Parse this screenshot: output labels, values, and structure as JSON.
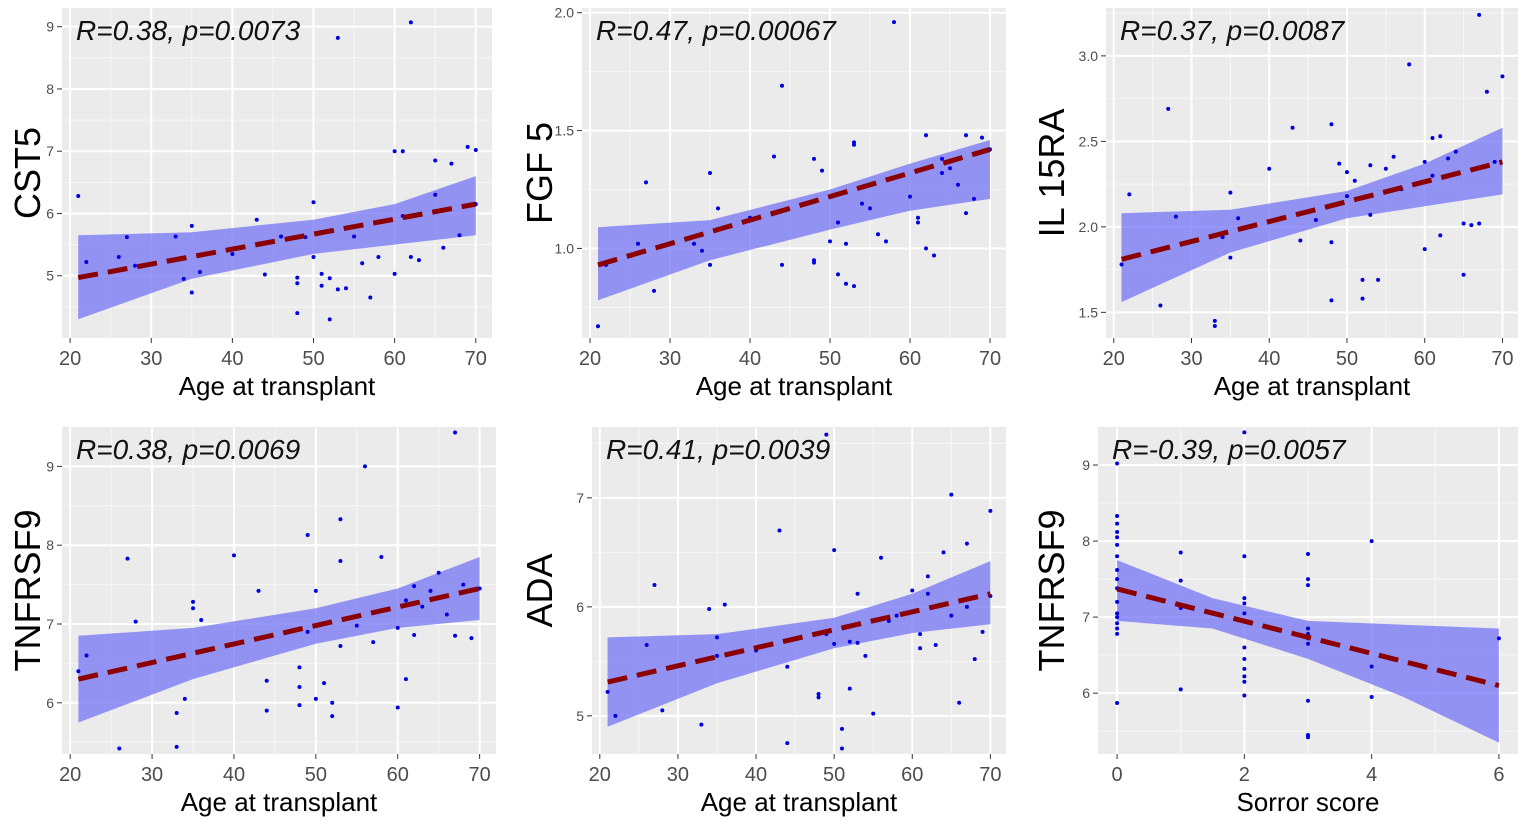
{
  "chart_data": [
    {
      "type": "scatter",
      "title": "",
      "annotation": "R=0.38, p=0.0073",
      "xlabel": "Age at transplant",
      "ylabel": "CST5",
      "xlim": [
        19,
        72
      ],
      "ylim": [
        4.0,
        9.3
      ],
      "x_ticks": [
        20,
        30,
        40,
        50,
        60,
        70
      ],
      "y_ticks": [
        5,
        6,
        7,
        8,
        9
      ],
      "fit": {
        "x": [
          21,
          70
        ],
        "y": [
          4.97,
          6.15
        ]
      },
      "band": {
        "x": [
          21,
          35,
          50,
          60,
          70
        ],
        "lower": [
          4.3,
          4.95,
          5.35,
          5.5,
          5.65
        ],
        "upper": [
          5.65,
          5.7,
          5.9,
          6.15,
          6.6
        ]
      },
      "points": [
        [
          21,
          6.28
        ],
        [
          22,
          5.22
        ],
        [
          26,
          5.3
        ],
        [
          27,
          5.62
        ],
        [
          28,
          5.16
        ],
        [
          33,
          5.63
        ],
        [
          34,
          4.95
        ],
        [
          35,
          5.8
        ],
        [
          35,
          4.73
        ],
        [
          36,
          5.06
        ],
        [
          40,
          5.35
        ],
        [
          43,
          5.9
        ],
        [
          44,
          5.02
        ],
        [
          46,
          5.63
        ],
        [
          48,
          4.97
        ],
        [
          48,
          4.4
        ],
        [
          48,
          4.88
        ],
        [
          49,
          5.62
        ],
        [
          50,
          6.18
        ],
        [
          50,
          5.3
        ],
        [
          51,
          4.84
        ],
        [
          51,
          5.03
        ],
        [
          52,
          4.3
        ],
        [
          52,
          4.96
        ],
        [
          53,
          8.82
        ],
        [
          53,
          4.78
        ],
        [
          54,
          4.8
        ],
        [
          55,
          5.63
        ],
        [
          56,
          5.2
        ],
        [
          57,
          4.65
        ],
        [
          58,
          5.3
        ],
        [
          60,
          5.03
        ],
        [
          60,
          7.0
        ],
        [
          61,
          7.0
        ],
        [
          61,
          5.96
        ],
        [
          62,
          9.07
        ],
        [
          62,
          5.3
        ],
        [
          63,
          5.25
        ],
        [
          65,
          6.85
        ],
        [
          65,
          6.3
        ],
        [
          66,
          5.45
        ],
        [
          67,
          6.8
        ],
        [
          68,
          5.65
        ],
        [
          69,
          7.07
        ],
        [
          70,
          7.02
        ],
        [
          70,
          6.15
        ]
      ]
    },
    {
      "type": "scatter",
      "title": "",
      "annotation": "R=0.47, p=0.00067",
      "xlabel": "Age at transplant",
      "ylabel": "FGF 5",
      "xlim": [
        19,
        72
      ],
      "ylim": [
        0.62,
        2.02
      ],
      "x_ticks": [
        20,
        30,
        40,
        50,
        60,
        70
      ],
      "y_ticks": [
        1.0,
        1.5,
        2.0
      ],
      "fit": {
        "x": [
          21,
          70
        ],
        "y": [
          0.93,
          1.42
        ]
      },
      "band": {
        "x": [
          21,
          35,
          50,
          60,
          70
        ],
        "lower": [
          0.78,
          0.95,
          1.08,
          1.16,
          1.21
        ],
        "upper": [
          1.09,
          1.12,
          1.25,
          1.36,
          1.46
        ]
      },
      "points": [
        [
          21,
          0.67
        ],
        [
          22,
          0.93
        ],
        [
          26,
          1.02
        ],
        [
          27,
          1.28
        ],
        [
          28,
          0.82
        ],
        [
          33,
          1.02
        ],
        [
          34,
          0.99
        ],
        [
          35,
          0.93
        ],
        [
          35,
          1.32
        ],
        [
          36,
          1.17
        ],
        [
          40,
          1.13
        ],
        [
          43,
          1.39
        ],
        [
          44,
          1.69
        ],
        [
          44,
          0.93
        ],
        [
          48,
          1.38
        ],
        [
          48,
          0.95
        ],
        [
          48,
          0.94
        ],
        [
          49,
          1.33
        ],
        [
          50,
          1.22
        ],
        [
          50,
          1.03
        ],
        [
          51,
          1.11
        ],
        [
          51,
          0.89
        ],
        [
          52,
          0.85
        ],
        [
          52,
          1.02
        ],
        [
          53,
          1.44
        ],
        [
          53,
          1.45
        ],
        [
          53,
          0.84
        ],
        [
          54,
          1.19
        ],
        [
          55,
          1.17
        ],
        [
          56,
          1.06
        ],
        [
          57,
          1.03
        ],
        [
          58,
          1.96
        ],
        [
          60,
          1.22
        ],
        [
          61,
          1.13
        ],
        [
          61,
          1.11
        ],
        [
          62,
          1.48
        ],
        [
          62,
          1.0
        ],
        [
          63,
          0.97
        ],
        [
          64,
          1.32
        ],
        [
          64,
          1.38
        ],
        [
          65,
          1.34
        ],
        [
          66,
          1.27
        ],
        [
          67,
          1.15
        ],
        [
          67,
          1.48
        ],
        [
          68,
          1.21
        ],
        [
          69,
          1.47
        ],
        [
          70,
          1.42
        ]
      ]
    },
    {
      "type": "scatter",
      "title": "",
      "annotation": "R=0.37, p=0.0087",
      "xlabel": "Age at transplant",
      "ylabel": "IL 15RA",
      "xlim": [
        19,
        72
      ],
      "ylim": [
        1.35,
        3.28
      ],
      "x_ticks": [
        20,
        30,
        40,
        50,
        60,
        70
      ],
      "y_ticks": [
        1.5,
        2.0,
        2.5,
        3.0
      ],
      "fit": {
        "x": [
          21,
          70
        ],
        "y": [
          1.81,
          2.38
        ]
      },
      "band": {
        "x": [
          21,
          35,
          50,
          60,
          70
        ],
        "lower": [
          1.56,
          1.85,
          2.05,
          2.12,
          2.19
        ],
        "upper": [
          2.08,
          2.1,
          2.21,
          2.37,
          2.58
        ]
      },
      "points": [
        [
          21,
          1.78
        ],
        [
          22,
          2.19
        ],
        [
          26,
          1.54
        ],
        [
          27,
          2.69
        ],
        [
          28,
          2.06
        ],
        [
          33,
          1.45
        ],
        [
          33,
          1.42
        ],
        [
          34,
          1.94
        ],
        [
          35,
          2.2
        ],
        [
          35,
          1.82
        ],
        [
          36,
          2.05
        ],
        [
          40,
          2.34
        ],
        [
          43,
          2.58
        ],
        [
          44,
          1.92
        ],
        [
          46,
          2.04
        ],
        [
          48,
          2.6
        ],
        [
          48,
          1.57
        ],
        [
          48,
          1.91
        ],
        [
          49,
          2.37
        ],
        [
          50,
          2.32
        ],
        [
          50,
          2.18
        ],
        [
          51,
          2.27
        ],
        [
          52,
          1.69
        ],
        [
          52,
          1.58
        ],
        [
          53,
          2.36
        ],
        [
          53,
          2.07
        ],
        [
          54,
          1.69
        ],
        [
          55,
          2.34
        ],
        [
          56,
          2.41
        ],
        [
          57,
          2.22
        ],
        [
          58,
          2.95
        ],
        [
          60,
          1.87
        ],
        [
          60,
          2.38
        ],
        [
          61,
          2.52
        ],
        [
          61,
          2.3
        ],
        [
          62,
          2.53
        ],
        [
          62,
          1.95
        ],
        [
          63,
          2.4
        ],
        [
          64,
          2.44
        ],
        [
          65,
          1.72
        ],
        [
          65,
          2.02
        ],
        [
          66,
          2.01
        ],
        [
          67,
          3.24
        ],
        [
          67,
          2.02
        ],
        [
          68,
          2.79
        ],
        [
          69,
          2.38
        ],
        [
          70,
          2.88
        ]
      ]
    },
    {
      "type": "scatter",
      "title": "",
      "annotation": "R=0.38, p=0.0069",
      "xlabel": "Age at transplant",
      "ylabel": "TNFRSF9",
      "xlim": [
        19,
        72
      ],
      "ylim": [
        5.35,
        9.5
      ],
      "x_ticks": [
        20,
        30,
        40,
        50,
        60,
        70
      ],
      "y_ticks": [
        6,
        7,
        8,
        9
      ],
      "fit": {
        "x": [
          21,
          70
        ],
        "y": [
          6.3,
          7.45
        ]
      },
      "band": {
        "x": [
          21,
          35,
          50,
          60,
          70
        ],
        "lower": [
          5.75,
          6.3,
          6.75,
          6.95,
          7.05
        ],
        "upper": [
          6.85,
          6.95,
          7.2,
          7.45,
          7.85
        ]
      },
      "points": [
        [
          21,
          6.4
        ],
        [
          22,
          6.6
        ],
        [
          26,
          5.42
        ],
        [
          27,
          7.83
        ],
        [
          28,
          7.03
        ],
        [
          33,
          5.44
        ],
        [
          33,
          5.87
        ],
        [
          34,
          6.05
        ],
        [
          35,
          7.28
        ],
        [
          35,
          7.2
        ],
        [
          36,
          7.05
        ],
        [
          40,
          7.87
        ],
        [
          43,
          7.42
        ],
        [
          44,
          6.28
        ],
        [
          44,
          5.9
        ],
        [
          48,
          6.2
        ],
        [
          48,
          5.97
        ],
        [
          48,
          6.45
        ],
        [
          49,
          8.13
        ],
        [
          49,
          6.9
        ],
        [
          50,
          7.42
        ],
        [
          50,
          6.05
        ],
        [
          51,
          6.25
        ],
        [
          52,
          6.0
        ],
        [
          52,
          5.83
        ],
        [
          53,
          8.33
        ],
        [
          53,
          7.8
        ],
        [
          53,
          6.72
        ],
        [
          55,
          6.98
        ],
        [
          56,
          9.0
        ],
        [
          57,
          6.77
        ],
        [
          58,
          7.85
        ],
        [
          60,
          6.95
        ],
        [
          60,
          5.94
        ],
        [
          61,
          7.3
        ],
        [
          61,
          6.3
        ],
        [
          62,
          7.48
        ],
        [
          62,
          6.86
        ],
        [
          63,
          7.22
        ],
        [
          64,
          7.42
        ],
        [
          65,
          7.65
        ],
        [
          66,
          7.12
        ],
        [
          67,
          9.43
        ],
        [
          67,
          6.85
        ],
        [
          68,
          7.5
        ],
        [
          69,
          6.82
        ],
        [
          70,
          7.45
        ]
      ]
    },
    {
      "type": "scatter",
      "title": "",
      "annotation": "R=0.41, p=0.0039",
      "xlabel": "Age at transplant",
      "ylabel": "ADA",
      "xlim": [
        19,
        72
      ],
      "ylim": [
        4.65,
        7.65
      ],
      "x_ticks": [
        20,
        30,
        40,
        50,
        60,
        70
      ],
      "y_ticks": [
        5,
        6,
        7
      ],
      "fit": {
        "x": [
          21,
          70
        ],
        "y": [
          5.31,
          6.12
        ]
      },
      "band": {
        "x": [
          21,
          35,
          50,
          60,
          70
        ],
        "lower": [
          4.9,
          5.3,
          5.62,
          5.76,
          5.84
        ],
        "upper": [
          5.72,
          5.75,
          5.9,
          6.12,
          6.42
        ]
      },
      "points": [
        [
          21,
          5.22
        ],
        [
          22,
          5.0
        ],
        [
          26,
          5.65
        ],
        [
          27,
          6.2
        ],
        [
          28,
          5.05
        ],
        [
          33,
          4.92
        ],
        [
          34,
          5.98
        ],
        [
          35,
          5.72
        ],
        [
          35,
          5.55
        ],
        [
          36,
          6.02
        ],
        [
          40,
          5.6
        ],
        [
          43,
          6.7
        ],
        [
          44,
          5.45
        ],
        [
          44,
          4.75
        ],
        [
          48,
          5.2
        ],
        [
          48,
          5.17
        ],
        [
          49,
          5.75
        ],
        [
          49,
          7.58
        ],
        [
          50,
          6.52
        ],
        [
          50,
          5.66
        ],
        [
          51,
          4.7
        ],
        [
          51,
          4.88
        ],
        [
          52,
          5.68
        ],
        [
          52,
          5.25
        ],
        [
          53,
          5.67
        ],
        [
          53,
          6.12
        ],
        [
          54,
          5.55
        ],
        [
          55,
          5.02
        ],
        [
          56,
          6.45
        ],
        [
          57,
          5.87
        ],
        [
          58,
          5.92
        ],
        [
          60,
          6.15
        ],
        [
          61,
          5.62
        ],
        [
          61,
          5.75
        ],
        [
          62,
          6.28
        ],
        [
          62,
          6.12
        ],
        [
          63,
          5.65
        ],
        [
          64,
          6.5
        ],
        [
          65,
          7.03
        ],
        [
          65,
          5.92
        ],
        [
          66,
          5.12
        ],
        [
          67,
          6.58
        ],
        [
          67,
          6.0
        ],
        [
          68,
          5.52
        ],
        [
          69,
          5.77
        ],
        [
          70,
          6.88
        ],
        [
          70,
          6.1
        ]
      ]
    },
    {
      "type": "scatter",
      "title": "",
      "annotation": "R=-0.39, p=0.0057",
      "xlabel": "Sorror score",
      "ylabel": "TNFRSF9",
      "xlim": [
        -0.3,
        6.3
      ],
      "ylim": [
        5.2,
        9.5
      ],
      "x_ticks": [
        0,
        2,
        4,
        6
      ],
      "y_ticks": [
        6,
        7,
        8,
        9
      ],
      "fit": {
        "x": [
          0,
          6
        ],
        "y": [
          7.37,
          6.1
        ]
      },
      "band": {
        "x": [
          0,
          1.5,
          3,
          4.5,
          6
        ],
        "lower": [
          6.95,
          6.85,
          6.45,
          5.95,
          5.35
        ],
        "upper": [
          7.75,
          7.25,
          6.95,
          6.9,
          6.85
        ]
      },
      "points": [
        [
          0,
          9.02
        ],
        [
          0,
          8.33
        ],
        [
          0,
          8.23
        ],
        [
          0,
          8.12
        ],
        [
          0,
          8.05
        ],
        [
          0,
          7.95
        ],
        [
          0,
          7.8
        ],
        [
          0,
          7.62
        ],
        [
          0,
          7.5
        ],
        [
          0,
          7.38
        ],
        [
          0,
          7.2
        ],
        [
          0,
          7.05
        ],
        [
          0,
          7.0
        ],
        [
          0,
          6.92
        ],
        [
          0,
          6.85
        ],
        [
          0,
          6.78
        ],
        [
          0,
          5.87
        ],
        [
          1,
          7.85
        ],
        [
          1,
          7.48
        ],
        [
          1,
          7.12
        ],
        [
          1,
          6.05
        ],
        [
          2,
          9.43
        ],
        [
          2,
          7.8
        ],
        [
          2,
          7.25
        ],
        [
          2,
          7.18
        ],
        [
          2,
          7.05
        ],
        [
          2,
          6.95
        ],
        [
          2,
          6.6
        ],
        [
          2,
          6.45
        ],
        [
          2,
          6.32
        ],
        [
          2,
          6.22
        ],
        [
          2,
          6.15
        ],
        [
          2,
          5.97
        ],
        [
          3,
          7.83
        ],
        [
          3,
          7.5
        ],
        [
          3,
          7.42
        ],
        [
          3,
          6.85
        ],
        [
          3,
          6.78
        ],
        [
          3,
          6.72
        ],
        [
          3,
          6.65
        ],
        [
          3,
          5.9
        ],
        [
          3,
          5.45
        ],
        [
          3,
          5.42
        ],
        [
          4,
          8.0
        ],
        [
          4,
          6.35
        ],
        [
          4,
          5.95
        ],
        [
          6,
          6.72
        ]
      ]
    }
  ]
}
